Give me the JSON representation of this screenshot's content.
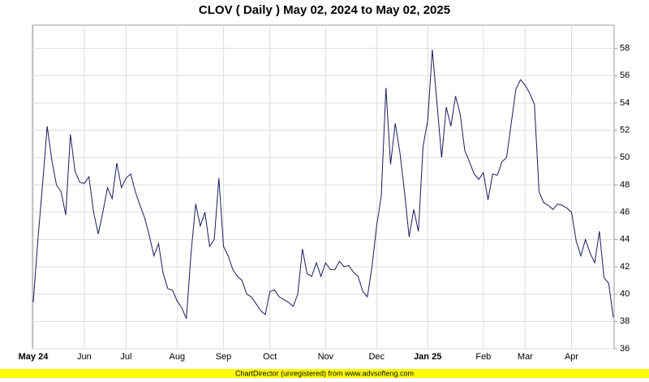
{
  "chart_data": {
    "type": "line",
    "title": "CLOV ( Daily ) May 02, 2024 to May 02, 2025",
    "footer": "ChartDirector (unregistered) from www.advsofteng.com",
    "categories": [
      "May 24",
      null,
      null,
      null,
      null,
      null,
      null,
      null,
      null,
      null,
      null,
      "Jun",
      null,
      null,
      null,
      null,
      null,
      null,
      null,
      null,
      "Jul",
      null,
      null,
      null,
      null,
      null,
      null,
      null,
      null,
      null,
      null,
      "Aug",
      null,
      null,
      null,
      null,
      null,
      null,
      null,
      null,
      null,
      "Sep",
      null,
      null,
      null,
      null,
      null,
      null,
      null,
      null,
      null,
      "Oct",
      null,
      null,
      null,
      null,
      null,
      null,
      null,
      null,
      null,
      null,
      null,
      "Nov",
      null,
      null,
      null,
      null,
      null,
      null,
      null,
      null,
      null,
      null,
      "Dec",
      null,
      null,
      null,
      null,
      null,
      null,
      null,
      null,
      null,
      null,
      "Jan 25",
      null,
      null,
      null,
      null,
      null,
      null,
      null,
      null,
      null,
      null,
      null,
      "Feb",
      null,
      null,
      null,
      null,
      null,
      null,
      null,
      null,
      "Mar",
      null,
      null,
      null,
      null,
      null,
      null,
      null,
      null,
      null,
      "Apr",
      null,
      null,
      null,
      null,
      null,
      null,
      null,
      null,
      null
    ],
    "series": [
      {
        "name": "CLOV",
        "color": "#1a1a5e",
        "values": [
          39.4,
          44,
          48,
          52.3,
          49.8,
          48,
          47.5,
          45.8,
          51.7,
          49,
          48.2,
          48.1,
          48.6,
          46,
          44.4,
          46,
          47.8,
          47,
          49.6,
          47.8,
          48.5,
          48.8,
          47.5,
          46.5,
          45.6,
          44.3,
          42.8,
          43.7,
          41.5,
          40.4,
          40.3,
          39.5,
          39,
          38.2,
          43,
          46.6,
          45,
          46,
          43.5,
          44,
          48.5,
          43.5,
          42.8,
          41.8,
          41.3,
          41,
          40,
          39.8,
          39.3,
          38.8,
          38.5,
          40.2,
          40.3,
          39.8,
          39.6,
          39.4,
          39.1,
          40,
          43.3,
          41.5,
          41.3,
          42.3,
          41.3,
          42.3,
          41.8,
          41.8,
          42.4,
          42,
          42.1,
          41.6,
          41.3,
          40.2,
          39.8,
          42,
          45,
          47.2,
          55.1,
          49.5,
          52.5,
          50.4,
          47.5,
          44.2,
          46.2,
          44.6,
          50.8,
          52.7,
          57.9,
          54,
          50,
          53.7,
          52.3,
          54.5,
          53.2,
          50.5,
          49.7,
          48.8,
          48.4,
          48.9,
          46.9,
          48.8,
          48.7,
          49.7,
          50,
          52.5,
          55,
          55.7,
          55.3,
          54.7,
          53.9,
          47.5,
          46.7,
          46.5,
          46.2,
          46.6,
          46.5,
          46.3,
          46,
          43.9,
          42.8,
          44,
          43,
          42.3,
          44.6,
          41.2,
          40.8,
          38.3
        ]
      }
    ],
    "ylim": [
      36,
      59.7
    ],
    "yticks": [
      36,
      38,
      40,
      42,
      44,
      46,
      48,
      50,
      52,
      54,
      56,
      58
    ],
    "grid": true
  }
}
